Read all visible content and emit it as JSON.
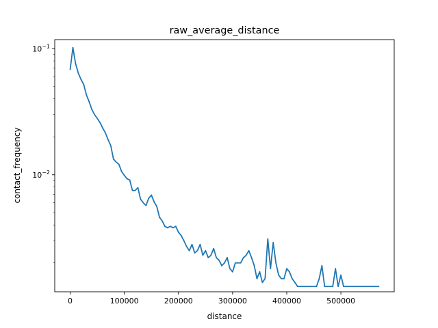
{
  "chart_data": {
    "type": "line",
    "title": "raw_average_distance",
    "xlabel": "distance",
    "ylabel": "contact_frequency",
    "xlim": [
      -28500,
      598500
    ],
    "ylim": [
      0.00118,
      0.118
    ],
    "yscale": "log",
    "grid": false,
    "line_color": "#1f77b4",
    "x_ticks": [
      0,
      100000,
      200000,
      300000,
      400000,
      500000
    ],
    "x_tick_labels": [
      "0",
      "100000",
      "200000",
      "300000",
      "400000",
      "500000"
    ],
    "y_ticks": [
      {
        "value": 0.1,
        "base": "10",
        "exp": "−1"
      },
      {
        "value": 0.01,
        "base": "10",
        "exp": "−2"
      }
    ],
    "series": [
      {
        "x": [
          0,
          5000,
          10000,
          15000,
          20000,
          25000,
          30000,
          35000,
          40000,
          45000,
          50000,
          55000,
          60000,
          65000,
          70000,
          75000,
          80000,
          85000,
          90000,
          95000,
          100000,
          105000,
          110000,
          115000,
          120000,
          125000,
          130000,
          135000,
          140000,
          145000,
          150000,
          155000,
          160000,
          165000,
          170000,
          175000,
          180000,
          185000,
          190000,
          195000,
          200000,
          205000,
          210000,
          215000,
          220000,
          225000,
          230000,
          235000,
          240000,
          245000,
          250000,
          255000,
          260000,
          265000,
          270000,
          275000,
          280000,
          285000,
          290000,
          295000,
          300000,
          305000,
          310000,
          315000,
          320000,
          325000,
          330000,
          335000,
          340000,
          345000,
          350000,
          355000,
          360000,
          365000,
          370000,
          375000,
          380000,
          385000,
          390000,
          395000,
          400000,
          405000,
          410000,
          415000,
          420000,
          425000,
          430000,
          435000,
          440000,
          445000,
          450000,
          455000,
          460000,
          465000,
          470000,
          475000,
          480000,
          485000,
          490000,
          495000,
          500000,
          505000,
          510000,
          515000,
          520000,
          525000,
          530000,
          535000,
          540000,
          545000,
          550000,
          555000,
          560000,
          565000,
          570000
        ],
        "y": [
          0.0685,
          0.102,
          0.076,
          0.064,
          0.057,
          0.052,
          0.043,
          0.038,
          0.033,
          0.03,
          0.028,
          0.026,
          0.0235,
          0.0215,
          0.019,
          0.017,
          0.0133,
          0.0126,
          0.0121,
          0.0106,
          0.0099,
          0.0093,
          0.0091,
          0.0075,
          0.0075,
          0.0079,
          0.0064,
          0.006,
          0.0057,
          0.0065,
          0.0069,
          0.0061,
          0.0056,
          0.0046,
          0.0043,
          0.0039,
          0.0038,
          0.0039,
          0.0038,
          0.0039,
          0.0035,
          0.0033,
          0.003,
          0.0027,
          0.0025,
          0.0028,
          0.0024,
          0.0025,
          0.0028,
          0.0023,
          0.0025,
          0.0022,
          0.0023,
          0.0026,
          0.0022,
          0.0021,
          0.0019,
          0.002,
          0.0022,
          0.0018,
          0.0017,
          0.002,
          0.002,
          0.002,
          0.0022,
          0.0023,
          0.0025,
          0.0022,
          0.0019,
          0.0015,
          0.0017,
          0.0014,
          0.0015,
          0.0031,
          0.0018,
          0.0029,
          0.002,
          0.0016,
          0.0015,
          0.0015,
          0.0018,
          0.0017,
          0.0015,
          0.0014,
          0.0013,
          0.0013,
          0.0013,
          0.0013,
          0.0013,
          0.0013,
          0.0013,
          0.0013,
          0.0015,
          0.0019,
          0.0013,
          0.0013,
          0.0013,
          0.0013,
          0.0018,
          0.0013,
          0.0016,
          0.0013,
          0.0013,
          0.0013,
          0.0013,
          0.0013,
          0.0013,
          0.0013,
          0.0013,
          0.0013,
          0.0013,
          0.0013,
          0.0013,
          0.0013,
          0.0013
        ]
      }
    ]
  }
}
